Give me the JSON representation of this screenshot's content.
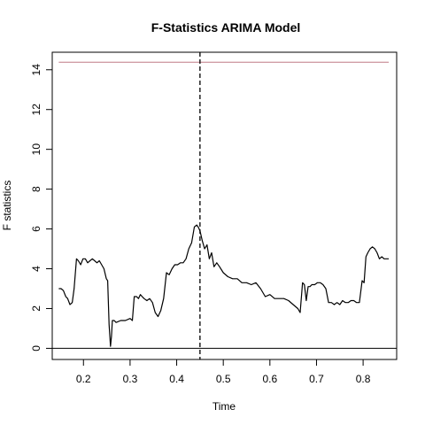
{
  "chart_data": {
    "type": "line",
    "title": "F-Statistics ARIMA Model",
    "xlabel": "Time",
    "ylabel": "F statistics",
    "xlim": [
      0.133,
      0.872
    ],
    "ylim": [
      -0.56,
      14.88
    ],
    "x_ticks": [
      0.2,
      0.3,
      0.4,
      0.5,
      0.6,
      0.7,
      0.8
    ],
    "x_tick_labels": [
      "0.2",
      "0.3",
      "0.4",
      "0.5",
      "0.6",
      "0.7",
      "0.8"
    ],
    "y_ticks": [
      0,
      2,
      4,
      6,
      8,
      10,
      12,
      14
    ],
    "y_tick_labels": [
      "0",
      "2",
      "4",
      "6",
      "8",
      "10",
      "12",
      "14"
    ],
    "grid": false,
    "legend": "none",
    "series": [
      {
        "color": "#000000",
        "x": [
          0.147,
          0.152,
          0.157,
          0.162,
          0.166,
          0.171,
          0.176,
          0.18,
          0.185,
          0.189,
          0.194,
          0.199,
          0.204,
          0.209,
          0.214,
          0.219,
          0.224,
          0.229,
          0.234,
          0.239,
          0.244,
          0.249,
          0.252,
          0.255,
          0.258,
          0.26,
          0.262,
          0.266,
          0.27,
          0.28,
          0.29,
          0.3,
          0.305,
          0.309,
          0.314,
          0.318,
          0.322,
          0.326,
          0.33,
          0.336,
          0.342,
          0.348,
          0.354,
          0.36,
          0.366,
          0.372,
          0.378,
          0.384,
          0.39,
          0.396,
          0.402,
          0.408,
          0.414,
          0.42,
          0.426,
          0.432,
          0.438,
          0.443,
          0.446,
          0.45,
          0.455,
          0.46,
          0.465,
          0.47,
          0.475,
          0.48,
          0.486,
          0.492,
          0.5,
          0.51,
          0.52,
          0.53,
          0.54,
          0.55,
          0.56,
          0.57,
          0.58,
          0.59,
          0.6,
          0.61,
          0.62,
          0.63,
          0.64,
          0.65,
          0.66,
          0.665,
          0.67,
          0.674,
          0.678,
          0.682,
          0.686,
          0.69,
          0.696,
          0.702,
          0.708,
          0.714,
          0.72,
          0.726,
          0.732,
          0.738,
          0.744,
          0.75,
          0.756,
          0.762,
          0.768,
          0.774,
          0.78,
          0.786,
          0.792,
          0.798,
          0.802,
          0.806,
          0.81,
          0.815,
          0.82,
          0.825,
          0.83,
          0.835,
          0.84,
          0.845,
          0.85,
          0.855
        ],
        "y": [
          3.0,
          3.0,
          2.9,
          2.6,
          2.5,
          2.2,
          2.3,
          3.0,
          4.5,
          4.4,
          4.2,
          4.5,
          4.5,
          4.3,
          4.4,
          4.5,
          4.4,
          4.3,
          4.4,
          4.2,
          4.0,
          3.5,
          3.4,
          1.2,
          0.1,
          0.6,
          1.4,
          1.4,
          1.3,
          1.4,
          1.4,
          1.5,
          1.4,
          2.6,
          2.6,
          2.5,
          2.7,
          2.6,
          2.5,
          2.4,
          2.5,
          2.3,
          1.8,
          1.6,
          1.9,
          2.5,
          3.8,
          3.7,
          4.0,
          4.2,
          4.2,
          4.3,
          4.3,
          4.5,
          5.0,
          5.3,
          6.1,
          6.2,
          6.1,
          5.9,
          5.4,
          5.0,
          5.2,
          4.5,
          4.8,
          4.1,
          4.3,
          4.1,
          3.8,
          3.6,
          3.5,
          3.5,
          3.3,
          3.3,
          3.2,
          3.3,
          3.0,
          2.6,
          2.7,
          2.5,
          2.5,
          2.5,
          2.4,
          2.2,
          2.0,
          1.8,
          3.3,
          3.2,
          2.4,
          3.1,
          3.1,
          3.2,
          3.2,
          3.3,
          3.3,
          3.2,
          3.0,
          2.3,
          2.3,
          2.2,
          2.3,
          2.2,
          2.4,
          2.3,
          2.3,
          2.4,
          2.4,
          2.3,
          2.3,
          3.4,
          3.3,
          4.6,
          4.8,
          5.0,
          5.1,
          5.0,
          4.8,
          4.5,
          4.6,
          4.5,
          4.5,
          4.5
        ]
      }
    ],
    "annotations": {
      "critical_value": {
        "y": 14.38,
        "color": "#c07a85",
        "x_range": [
          0.147,
          0.855
        ]
      },
      "baseline": {
        "y": 0,
        "color": "#000000"
      },
      "breakpoint": {
        "x": 0.45,
        "color": "#000000",
        "style": "dashed"
      }
    }
  }
}
